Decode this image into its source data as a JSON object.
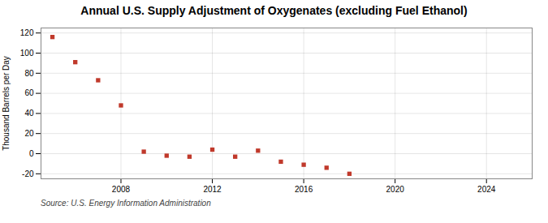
{
  "chart_data": {
    "type": "scatter",
    "title": "Annual U.S. Supply Adjustment of Oxygenates (excluding Fuel Ethanol)",
    "y_label": "Thousand Barrels per Day",
    "source": "Source: U.S. Energy Information Administration",
    "x": [
      2005,
      2006,
      2007,
      2008,
      2009,
      2010,
      2011,
      2012,
      2013,
      2014,
      2015,
      2016,
      2017,
      2018
    ],
    "values": [
      116,
      91,
      73,
      48,
      2,
      -2,
      -3,
      4,
      -3,
      3,
      -8,
      -11,
      -14,
      -20
    ],
    "color": "#c0392b",
    "marker": "square",
    "xlim": [
      2004.5,
      2026
    ],
    "ylim": [
      -25,
      125
    ],
    "xticks": [
      2008,
      2012,
      2016,
      2020,
      2024
    ],
    "yticks": [
      -20,
      0,
      20,
      40,
      60,
      80,
      100,
      120
    ],
    "grid": true
  }
}
